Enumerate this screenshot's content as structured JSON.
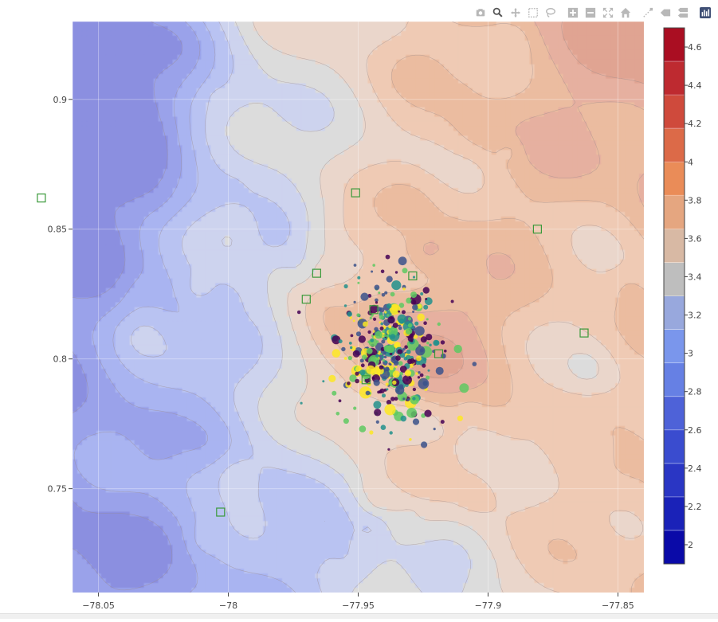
{
  "modebar": {
    "buttons": [
      "camera-icon",
      "zoom-icon",
      "pan-icon",
      "box-select-icon",
      "lasso-icon",
      "zoom-in-icon",
      "zoom-out-icon",
      "autoscale-icon",
      "reset-axes-icon",
      "spike-lines-icon",
      "hover-closest-icon",
      "hover-compare-icon",
      "plotly-logo-icon"
    ],
    "active": "zoom-icon",
    "icon_color": "#b8b8b8",
    "active_color": "#555555"
  },
  "chart_data": {
    "type": "contour",
    "xlim": [
      -78.06,
      -77.84
    ],
    "ylim": [
      0.71,
      0.93
    ],
    "x_ticks": [
      -78.05,
      -78,
      -77.95,
      -77.9,
      -77.85
    ],
    "x_tick_labels": [
      "−78.05",
      "−78",
      "−77.95",
      "−77.9",
      "−77.85"
    ],
    "y_ticks": [
      0.75,
      0.8,
      0.85,
      0.9
    ],
    "y_tick_labels": [
      "0.75",
      "0.8",
      "0.85",
      "0.9"
    ],
    "grid": true,
    "colorbar": {
      "range": [
        1.9,
        4.7
      ],
      "ticks": [
        2,
        2.2,
        2.4,
        2.6,
        2.8,
        3,
        3.2,
        3.4,
        3.6,
        3.8,
        4,
        4.2,
        4.4,
        4.6
      ],
      "tick_labels": [
        "2",
        "2.2",
        "2.4",
        "2.6",
        "2.8",
        "3",
        "3.2",
        "3.4",
        "3.6",
        "3.8",
        "4",
        "4.2",
        "4.4",
        "4.6"
      ],
      "colors": [
        "#0a0aa8",
        "#1a22b8",
        "#2a36c4",
        "#3a4ccf",
        "#4e62d8",
        "#6680e4",
        "#7a96ec",
        "#98a8dd",
        "#bebebe",
        "#d8b9a4",
        "#e5a680",
        "#ea8c58",
        "#dc6a48",
        "#cf4a3c",
        "#be2a30",
        "#aa0e22"
      ]
    },
    "contour_levels": [
      2.8,
      2.9,
      3.0,
      3.1,
      3.2,
      3.3,
      3.4,
      3.5,
      3.6,
      3.7
    ],
    "contour_fill_colors": [
      "#8b8fe0",
      "#9aa2ea",
      "#a9b4f1",
      "#b9c3f2",
      "#cdd3ee",
      "#dcdcdc",
      "#ead6cb",
      "#efcab4",
      "#ebbca0",
      "#e6b0a0",
      "#e0a492"
    ],
    "markers": {
      "squares": {
        "color": "#3a9a3a",
        "points": [
          [
            -78.072,
            0.862
          ],
          [
            -77.951,
            0.864
          ],
          [
            -77.881,
            0.85
          ],
          [
            -77.966,
            0.833
          ],
          [
            -77.929,
            0.832
          ],
          [
            -77.97,
            0.823
          ],
          [
            -77.944,
            0.819
          ],
          [
            -77.919,
            0.802
          ],
          [
            -77.863,
            0.81
          ],
          [
            -77.947,
            0.792
          ],
          [
            -78.003,
            0.741
          ]
        ]
      },
      "circles": {
        "colormap": [
          "#440154",
          "#3b528b",
          "#21918c",
          "#5ec962",
          "#fde725"
        ],
        "center": [
          -77.938,
          0.803
        ],
        "spread_x": 0.01,
        "spread_y": 0.013,
        "count": 420
      }
    }
  }
}
